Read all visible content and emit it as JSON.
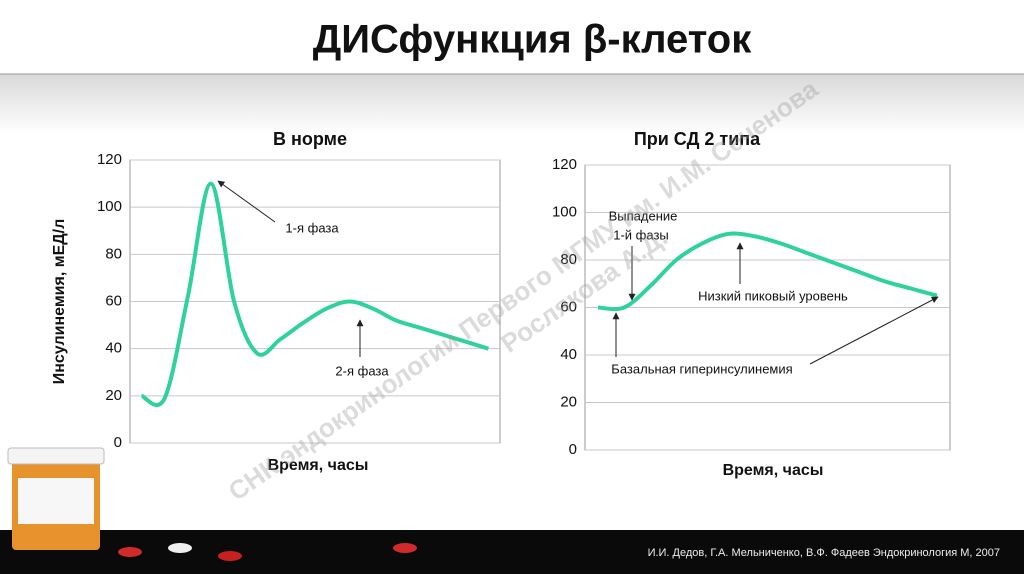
{
  "title": "ДИСфункция β-клеток",
  "watermark": [
    "СНК эндокринологии Первого МГМУ им. И.М. Сеченова",
    "Рослякова А.Д."
  ],
  "footer": "И.И. Дедов, Г.А. Мельниченко, В.Ф. Фадеев Эндокринология М, 2007",
  "chart_data": [
    {
      "type": "line",
      "title": "В норме",
      "y_label": "Инсулинемия, мЕД/л",
      "x_label": "Время, часы",
      "categories": [
        null,
        null,
        null,
        null,
        null,
        null,
        null,
        null,
        null,
        null,
        null,
        null,
        null,
        null,
        null,
        null
      ],
      "values": [
        20,
        19,
        62,
        110,
        60,
        38,
        44,
        51,
        57,
        60,
        57,
        52,
        49,
        46,
        43,
        40
      ],
      "color": "#2fd39a",
      "ylim": [
        0,
        120
      ],
      "yticks": [
        0,
        20,
        40,
        60,
        80,
        100,
        120
      ],
      "grid": true,
      "annotations": [
        "1-я фаза",
        "2-я фаза"
      ]
    },
    {
      "type": "line",
      "title": "При СД 2 типа",
      "x_label": "Время, часы",
      "categories": [
        null,
        null,
        null,
        null,
        null,
        null,
        null,
        null,
        null,
        null,
        null,
        null,
        null,
        null
      ],
      "values": [
        60,
        60,
        69,
        80,
        87,
        91,
        90,
        87,
        83,
        79,
        75,
        71,
        68,
        65
      ],
      "color": "#2fd39a",
      "ylim": [
        0,
        120
      ],
      "yticks": [
        0,
        20,
        40,
        60,
        80,
        100,
        120
      ],
      "grid": true,
      "annotations": [
        "Выпадение",
        "1-й фазы",
        "Низкий пиковый уровень",
        "Базальная гиперинсулинемия"
      ]
    }
  ]
}
